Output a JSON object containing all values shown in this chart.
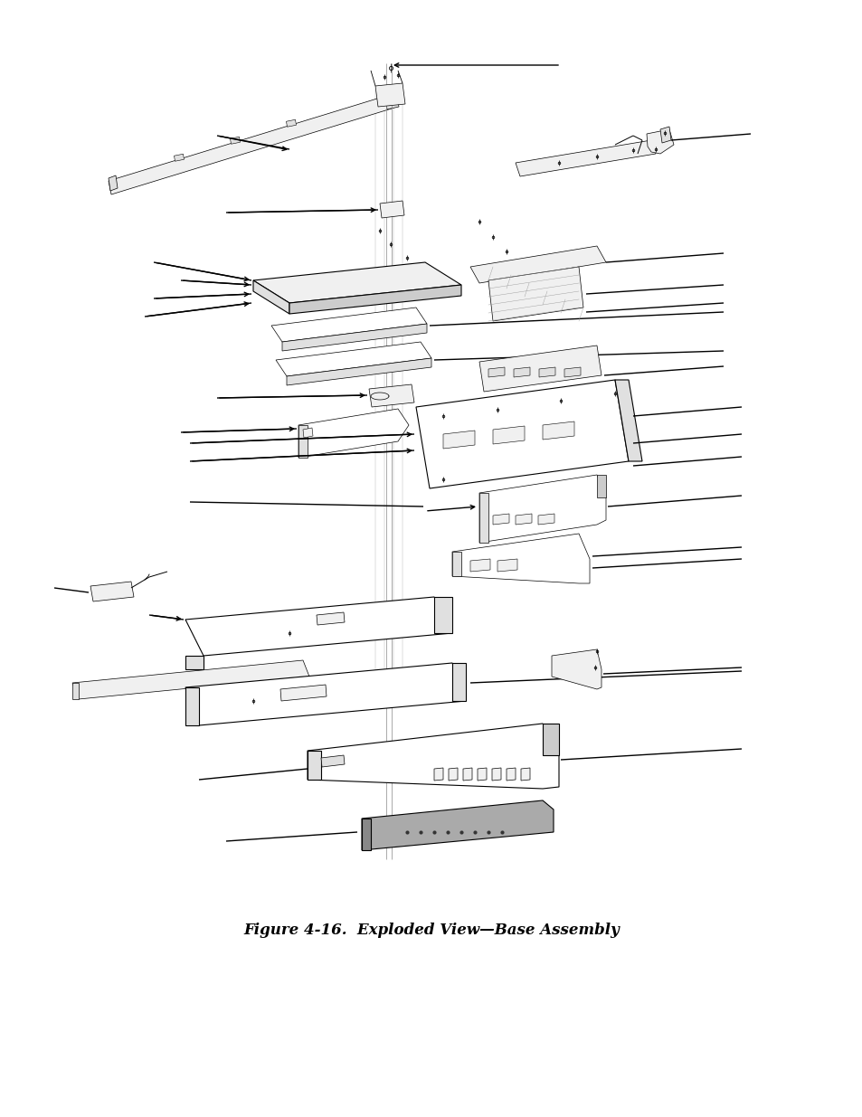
{
  "title": "Figure 4-16.  Exploded View—Base Assembly",
  "title_fontsize": 12,
  "bg_color": "#ffffff",
  "line_color": "#000000",
  "fig_width": 9.54,
  "fig_height": 12.35,
  "dpi": 100
}
